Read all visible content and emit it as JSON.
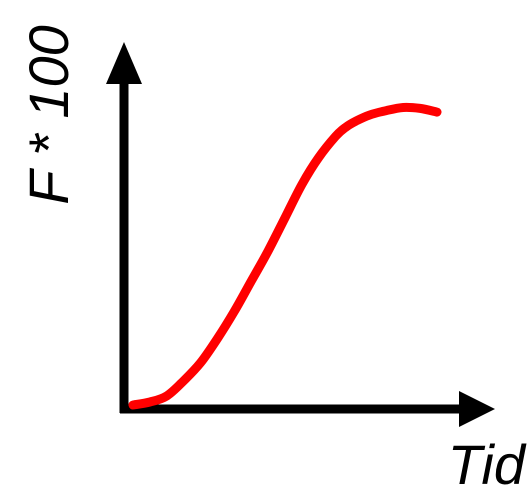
{
  "chart_data": {
    "type": "line",
    "title": "",
    "xlabel": "Tid",
    "ylabel": "F * 100",
    "grid": false,
    "legend": "none",
    "ticks": "none",
    "xlim": [
      0,
      1
    ],
    "ylim": [
      0,
      1
    ],
    "series": [
      {
        "color": "#ff0000",
        "x": [
          0.0,
          0.05,
          0.1,
          0.15,
          0.2,
          0.25,
          0.3,
          0.35,
          0.4,
          0.45,
          0.5,
          0.55,
          0.6,
          0.63,
          0.66,
          0.7,
          0.75,
          0.8,
          0.85,
          0.9
        ],
        "y": [
          0.0,
          0.01,
          0.03,
          0.08,
          0.14,
          0.22,
          0.31,
          0.41,
          0.51,
          0.62,
          0.73,
          0.82,
          0.89,
          0.92,
          0.94,
          0.96,
          0.975,
          0.985,
          0.982,
          0.97
        ]
      }
    ],
    "axis_color": "#000000"
  }
}
